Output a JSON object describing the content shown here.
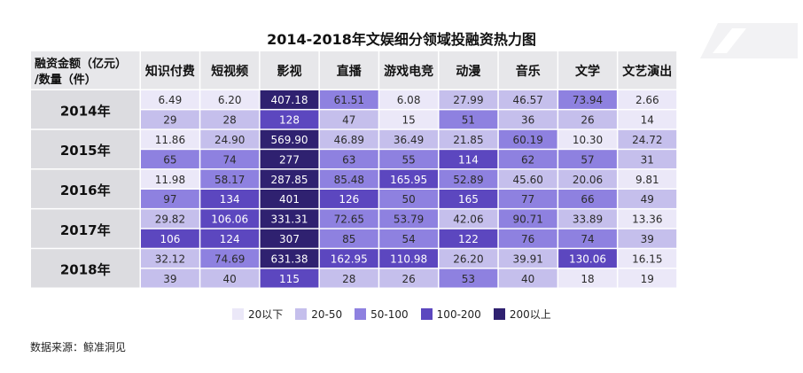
{
  "chart_data": {
    "type": "heatmap",
    "title": "2014-2018年文娱细分领域投融资热力图",
    "corner_label": [
      "融资金额（亿元）",
      "/数量（件）"
    ],
    "columns": [
      "知识付费",
      "短视频",
      "影视",
      "直播",
      "游戏电竞",
      "动漫",
      "音乐",
      "文学",
      "文艺演出"
    ],
    "rows": [
      {
        "year": "2014年",
        "amount": [
          6.49,
          6.2,
          407.18,
          61.51,
          6.08,
          27.99,
          46.57,
          73.94,
          2.66
        ],
        "count": [
          29,
          28,
          128,
          47,
          15,
          51,
          36,
          26,
          14
        ]
      },
      {
        "year": "2015年",
        "amount": [
          11.86,
          24.9,
          569.9,
          46.89,
          36.49,
          21.85,
          60.19,
          10.3,
          24.72
        ],
        "count": [
          65,
          74,
          277,
          63,
          55,
          114,
          62,
          57,
          31
        ]
      },
      {
        "year": "2016年",
        "amount": [
          11.98,
          58.17,
          287.85,
          85.48,
          165.95,
          52.89,
          45.6,
          20.06,
          9.81
        ],
        "count": [
          97,
          134,
          401,
          126,
          50,
          165,
          77,
          66,
          49
        ]
      },
      {
        "year": "2017年",
        "amount": [
          29.82,
          106.06,
          331.31,
          72.65,
          53.79,
          42.06,
          90.71,
          33.89,
          13.36
        ],
        "count": [
          106,
          124,
          307,
          85,
          54,
          122,
          76,
          74,
          39
        ]
      },
      {
        "year": "2018年",
        "amount": [
          32.12,
          74.69,
          631.38,
          162.95,
          110.98,
          26.2,
          39.91,
          130.06,
          16.15
        ],
        "count": [
          39,
          40,
          115,
          28,
          26,
          53,
          40,
          18,
          19
        ]
      }
    ],
    "legend": [
      {
        "label": "20以下",
        "max": 20,
        "color": "#ebe8f8"
      },
      {
        "label": "20-50",
        "max": 50,
        "color": "#c5bfec"
      },
      {
        "label": "50-100",
        "max": 100,
        "color": "#8e81e0"
      },
      {
        "label": "100-200",
        "max": 200,
        "color": "#5c47bf"
      },
      {
        "label": "200以上",
        "max": 100000,
        "color": "#2f2170"
      }
    ],
    "legend_placement": "bottom-center"
  },
  "colors": {
    "header_bg": "#e7e7ea",
    "row_header_bg": "#dcdce0",
    "dark_text": "#ffffff",
    "light_text": "#2b2b2b"
  },
  "source_label": "数据来源：鲸准洞见"
}
